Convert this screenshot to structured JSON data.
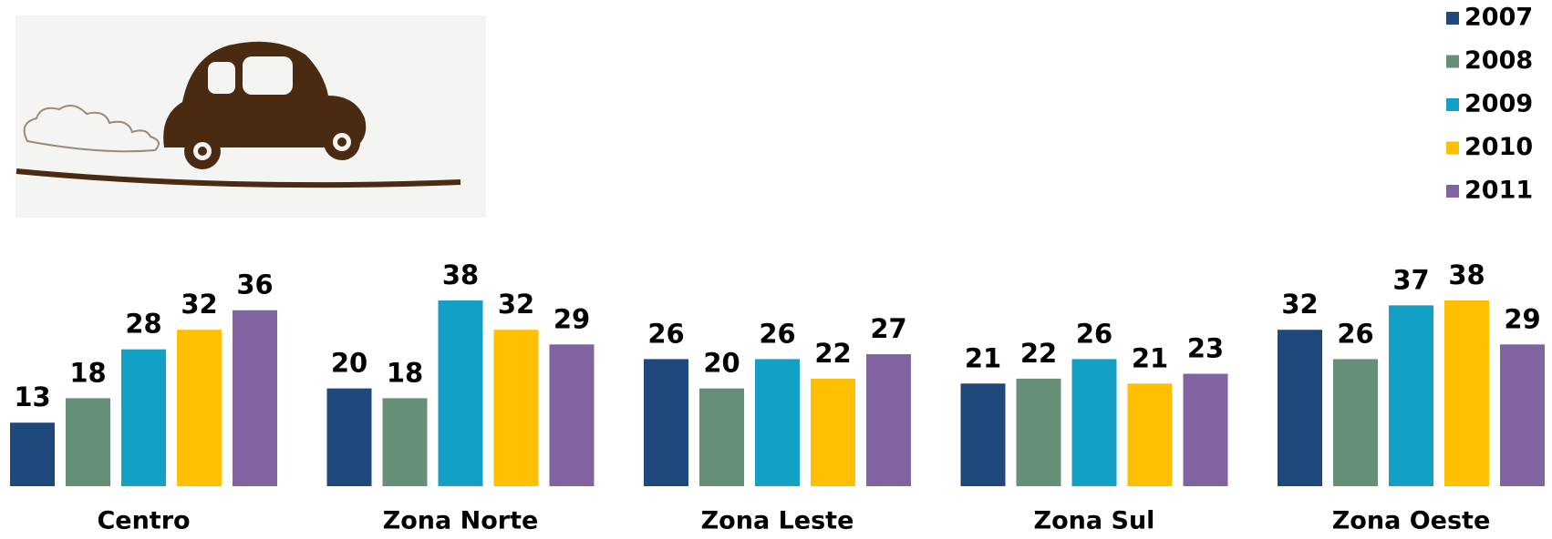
{
  "chart_data": {
    "type": "bar",
    "categories": [
      "Centro",
      "Zona Norte",
      "Zona Leste",
      "Zona Sul",
      "Zona Oeste"
    ],
    "series": [
      {
        "name": "2007",
        "color": "#1f497d",
        "values": [
          13,
          20,
          26,
          21,
          32
        ]
      },
      {
        "name": "2008",
        "color": "#659077",
        "values": [
          18,
          18,
          20,
          22,
          26
        ]
      },
      {
        "name": "2009",
        "color": "#12a1c5",
        "values": [
          28,
          38,
          26,
          26,
          37
        ]
      },
      {
        "name": "2010",
        "color": "#fec000",
        "values": [
          32,
          32,
          22,
          21,
          38
        ]
      },
      {
        "name": "2011",
        "color": "#8064a2",
        "values": [
          36,
          29,
          27,
          23,
          29
        ]
      }
    ],
    "legend": "top-right"
  }
}
